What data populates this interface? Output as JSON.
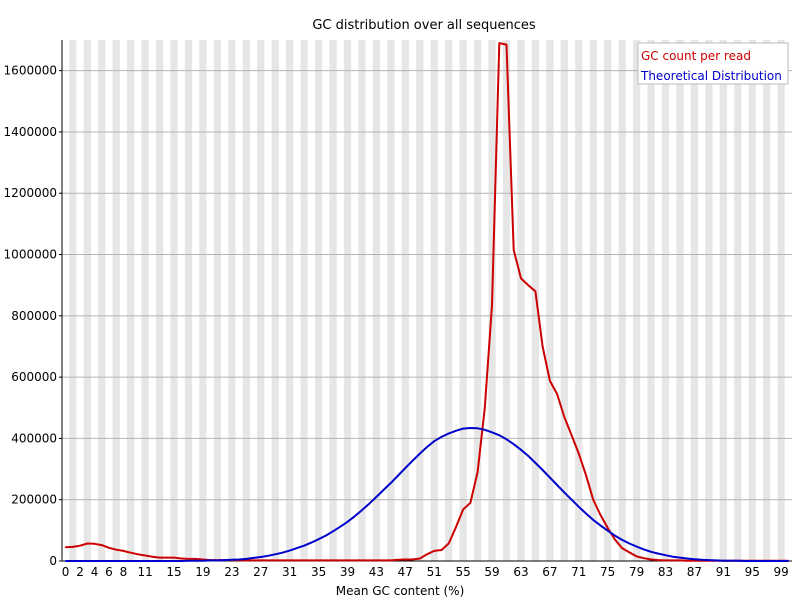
{
  "chart_data": {
    "type": "line",
    "title": "GC distribution over all sequences",
    "xlabel": "Mean GC content (%)",
    "ylabel": "",
    "xlim": [
      0,
      101
    ],
    "ylim": [
      0,
      1700000
    ],
    "grid": true,
    "legend_position": "top-right",
    "x_ticks": [
      "0",
      "2",
      "4",
      "6",
      "8",
      "11",
      "15",
      "19",
      "23",
      "27",
      "31",
      "35",
      "39",
      "43",
      "47",
      "51",
      "55",
      "59",
      "63",
      "67",
      "71",
      "75",
      "79",
      "83",
      "87",
      "91",
      "95",
      "99"
    ],
    "y_ticks": [
      "0",
      "200000",
      "400000",
      "600000",
      "800000",
      "1000000",
      "1200000",
      "1400000",
      "1600000"
    ],
    "x": [
      0,
      1,
      2,
      3,
      4,
      5,
      6,
      7,
      8,
      9,
      10,
      11,
      12,
      13,
      14,
      15,
      16,
      17,
      18,
      19,
      20,
      21,
      22,
      23,
      24,
      25,
      26,
      27,
      28,
      29,
      30,
      31,
      32,
      33,
      34,
      35,
      36,
      37,
      38,
      39,
      40,
      41,
      42,
      43,
      44,
      45,
      46,
      47,
      48,
      49,
      50,
      51,
      52,
      53,
      54,
      55,
      56,
      57,
      58,
      59,
      60,
      61,
      62,
      63,
      64,
      65,
      66,
      67,
      68,
      69,
      70,
      71,
      72,
      73,
      74,
      75,
      76,
      77,
      78,
      79,
      80,
      81,
      82,
      83,
      84,
      85,
      86,
      87,
      88,
      89,
      90,
      91,
      92,
      93,
      94,
      95,
      96,
      97,
      98,
      99,
      100
    ],
    "series": [
      {
        "name": "GC count per read",
        "color": "#cc0000",
        "values": [
          45000,
          46000,
          50000,
          57000,
          56000,
          52000,
          43000,
          37000,
          33000,
          27000,
          22000,
          18000,
          14000,
          11000,
          11000,
          11000,
          8000,
          7000,
          7000,
          5000,
          3000,
          3000,
          3000,
          3000,
          2000,
          2000,
          2000,
          2000,
          2000,
          2000,
          2000,
          2000,
          2000,
          2000,
          2000,
          2000,
          2000,
          2000,
          2000,
          2000,
          2000,
          2000,
          2000,
          2000,
          2000,
          2000,
          4000,
          5000,
          5000,
          8000,
          22000,
          33000,
          36000,
          57000,
          110000,
          168000,
          190000,
          290000,
          500000,
          835000,
          1690000,
          1685000,
          1015000,
          922000,
          900000,
          880000,
          700000,
          588000,
          545000,
          470000,
          410000,
          350000,
          280000,
          200000,
          150000,
          108000,
          70000,
          42000,
          28000,
          15000,
          9000,
          5000,
          3000,
          2000,
          2000,
          2000,
          1000,
          1000,
          1000,
          1000,
          1000,
          1000,
          1000,
          1000,
          1000,
          1000,
          1000,
          1000,
          1000,
          1000,
          1000
        ]
      },
      {
        "name": "Theoretical Distribution",
        "color": "#0000cc",
        "values": [
          0,
          0,
          0,
          0,
          0,
          0,
          0,
          0,
          0,
          0,
          0,
          0,
          0,
          0,
          0,
          0,
          0,
          1000,
          1000,
          1000,
          2000,
          2000,
          3000,
          4000,
          5000,
          7000,
          10000,
          13000,
          17000,
          22000,
          27000,
          34000,
          42000,
          50000,
          60000,
          71000,
          83000,
          97000,
          112000,
          128000,
          146000,
          166000,
          187000,
          209000,
          232000,
          255000,
          279000,
          303000,
          327000,
          350000,
          372000,
          391000,
          405000,
          416000,
          425000,
          432000,
          434000,
          433000,
          428000,
          420000,
          410000,
          397000,
          381000,
          363000,
          343000,
          320000,
          297000,
          272000,
          248000,
          224000,
          200000,
          177000,
          155000,
          134000,
          116000,
          99000,
          83000,
          69000,
          57000,
          47000,
          38000,
          30000,
          24000,
          19000,
          14000,
          11000,
          8000,
          6000,
          4000,
          3000,
          2000,
          1000,
          1000,
          1000,
          0,
          0,
          0,
          0,
          0,
          0,
          0
        ]
      }
    ]
  }
}
